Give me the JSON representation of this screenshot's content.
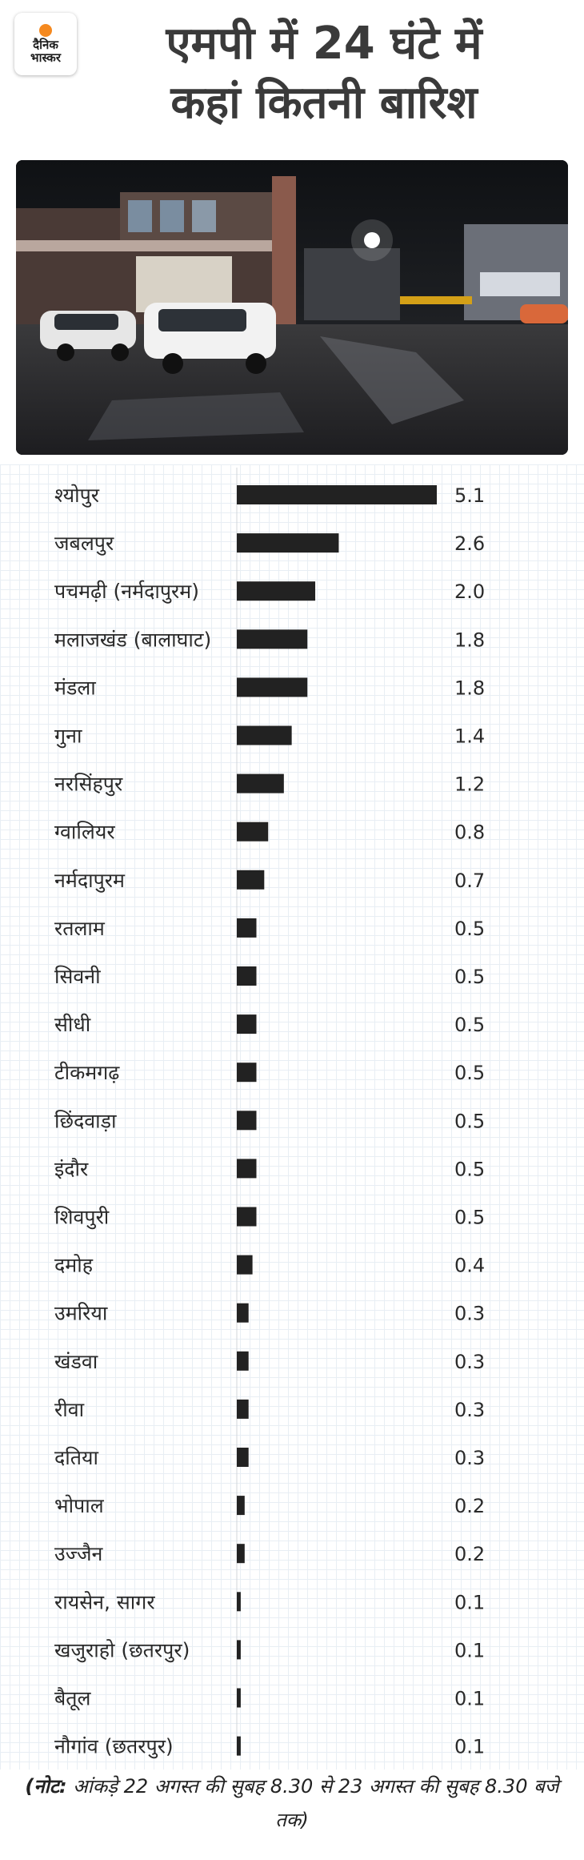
{
  "header": {
    "logo_line1": "दैनिक",
    "logo_line2": "भास्कर",
    "title_line1": "एमपी में 24 घंटे में",
    "title_line2": "कहां कितनी बारिश"
  },
  "chart_data": {
    "type": "bar",
    "orientation": "horizontal",
    "categories": [
      "श्योपुर",
      "जबलपुर",
      "पचमढ़ी (नर्मदापुरम)",
      "मलाजखंड (बालाघाट)",
      "मंडला",
      "गुना",
      "नरसिंहपुर",
      "ग्वालियर",
      "नर्मदापुरम",
      "रतलाम",
      "सिवनी",
      "सीधी",
      "टीकमगढ़",
      "छिंदवाड़ा",
      "इंदौर",
      "शिवपुरी",
      "दमोह",
      "उमरिया",
      "खंडवा",
      "रीवा",
      "दतिया",
      "भोपाल",
      "उज्जैन",
      "रायसेन, सागर",
      "खजुराहो (छतरपुर)",
      "बैतूल",
      "नौगांव (छतरपुर)"
    ],
    "values": [
      5.1,
      2.6,
      2.0,
      1.8,
      1.8,
      1.4,
      1.2,
      0.8,
      0.7,
      0.5,
      0.5,
      0.5,
      0.5,
      0.5,
      0.5,
      0.5,
      0.4,
      0.3,
      0.3,
      0.3,
      0.3,
      0.2,
      0.2,
      0.1,
      0.1,
      0.1,
      0.1
    ],
    "value_labels": [
      "5.1",
      "2.6",
      "2.0",
      "1.8",
      "1.8",
      "1.4",
      "1.2",
      "0.8",
      "0.7",
      "0.5",
      "0.5",
      "0.5",
      "0.5",
      "0.5",
      "0.5",
      "0.5",
      "0.4",
      "0.3",
      "0.3",
      "0.3",
      "0.3",
      "0.2",
      "0.2",
      "0.1",
      "0.1",
      "0.1",
      "0.1"
    ],
    "xlim": [
      0,
      5.1
    ],
    "grid": true,
    "bar_color": "#222222"
  },
  "note": {
    "prefix": "(नोट:",
    "text": " आंकड़े 22 अगस्त की सुबह 8.30 से 23 अगस्त की सुबह 8.30 बजे तक)"
  }
}
